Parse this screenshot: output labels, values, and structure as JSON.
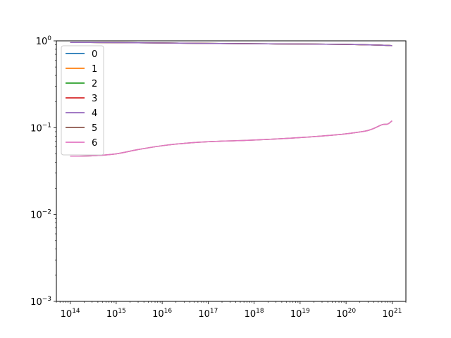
{
  "chart_data": {
    "type": "line",
    "xscale": "log",
    "yscale": "log",
    "xlim": [
      50000000000000.0,
      2e+21
    ],
    "ylim": [
      0.001,
      1
    ],
    "grid": false,
    "legend_position": "top-left",
    "x_ticks": [
      {
        "value": 100000000000000.0,
        "base": "10",
        "exp": "14"
      },
      {
        "value": 1000000000000000.0,
        "base": "10",
        "exp": "15"
      },
      {
        "value": 1e+16,
        "base": "10",
        "exp": "16"
      },
      {
        "value": 1e+17,
        "base": "10",
        "exp": "17"
      },
      {
        "value": 1e+18,
        "base": "10",
        "exp": "18"
      },
      {
        "value": 1e+19,
        "base": "10",
        "exp": "19"
      },
      {
        "value": 1e+20,
        "base": "10",
        "exp": "20"
      },
      {
        "value": 1e+21,
        "base": "10",
        "exp": "21"
      }
    ],
    "y_ticks": [
      {
        "value": 0.001,
        "base": "10",
        "exp": "−3"
      },
      {
        "value": 0.01,
        "base": "10",
        "exp": "−2"
      },
      {
        "value": 0.1,
        "base": "10",
        "exp": "−1"
      },
      {
        "value": 1,
        "base": "10",
        "exp": "0"
      }
    ],
    "series": [
      {
        "name": "0",
        "color": "#1f77b4",
        "points": [
          [
            100000000000000.0,
            0.96
          ],
          [
            1000000000000000.0,
            0.955
          ],
          [
            1e+16,
            0.945
          ],
          [
            1e+17,
            0.935
          ],
          [
            1e+18,
            0.925
          ],
          [
            1e+19,
            0.92
          ],
          [
            1e+20,
            0.91
          ],
          [
            5e+20,
            0.895
          ],
          [
            1e+21,
            0.88
          ]
        ]
      },
      {
        "name": "1",
        "color": "#ff7f0e",
        "points": [
          [
            100000000000000.0,
            0.96
          ],
          [
            1000000000000000.0,
            0.955
          ],
          [
            1e+16,
            0.945
          ],
          [
            1e+17,
            0.935
          ],
          [
            1e+18,
            0.925
          ],
          [
            1e+19,
            0.92
          ],
          [
            1e+20,
            0.91
          ],
          [
            5e+20,
            0.895
          ],
          [
            1e+21,
            0.88
          ]
        ]
      },
      {
        "name": "2",
        "color": "#2ca02c",
        "points": [
          [
            100000000000000.0,
            0.96
          ],
          [
            1000000000000000.0,
            0.955
          ],
          [
            1e+16,
            0.945
          ],
          [
            1e+17,
            0.935
          ],
          [
            1e+18,
            0.925
          ],
          [
            1e+19,
            0.92
          ],
          [
            1e+20,
            0.91
          ],
          [
            5e+20,
            0.895
          ],
          [
            1e+21,
            0.88
          ]
        ]
      },
      {
        "name": "3",
        "color": "#d62728",
        "points": [
          [
            100000000000000.0,
            0.96
          ],
          [
            1000000000000000.0,
            0.955
          ],
          [
            1e+16,
            0.945
          ],
          [
            1e+17,
            0.935
          ],
          [
            1e+18,
            0.925
          ],
          [
            1e+19,
            0.92
          ],
          [
            1e+20,
            0.91
          ],
          [
            5e+20,
            0.895
          ],
          [
            1e+21,
            0.88
          ]
        ]
      },
      {
        "name": "4",
        "color": "#9467bd",
        "points": [
          [
            100000000000000.0,
            0.96
          ],
          [
            1000000000000000.0,
            0.955
          ],
          [
            1e+16,
            0.945
          ],
          [
            1e+17,
            0.935
          ],
          [
            1e+18,
            0.925
          ],
          [
            1e+19,
            0.92
          ],
          [
            1e+20,
            0.91
          ],
          [
            5e+20,
            0.895
          ],
          [
            1e+21,
            0.88
          ]
        ]
      },
      {
        "name": "5",
        "color": "#8c564b",
        "points": [
          [
            100000000000000.0,
            0.047
          ],
          [
            300000000000000.0,
            0.0475
          ],
          [
            1000000000000000.0,
            0.05
          ],
          [
            3000000000000000.0,
            0.056
          ],
          [
            1e+16,
            0.062
          ],
          [
            3e+16,
            0.066
          ],
          [
            1e+17,
            0.069
          ],
          [
            1e+18,
            0.072
          ],
          [
            1e+19,
            0.077
          ],
          [
            5e+19,
            0.082
          ],
          [
            1e+20,
            0.085
          ],
          [
            3e+20,
            0.093
          ],
          [
            6e+20,
            0.108
          ],
          [
            8e+20,
            0.11
          ],
          [
            1e+21,
            0.12
          ]
        ]
      },
      {
        "name": "6",
        "color": "#e377c2",
        "points": [
          [
            100000000000000.0,
            0.047
          ],
          [
            300000000000000.0,
            0.0475
          ],
          [
            1000000000000000.0,
            0.05
          ],
          [
            3000000000000000.0,
            0.056
          ],
          [
            1e+16,
            0.062
          ],
          [
            3e+16,
            0.066
          ],
          [
            1e+17,
            0.069
          ],
          [
            1e+18,
            0.072
          ],
          [
            1e+19,
            0.077
          ],
          [
            5e+19,
            0.082
          ],
          [
            1e+20,
            0.085
          ],
          [
            3e+20,
            0.093
          ],
          [
            6e+20,
            0.108
          ],
          [
            8e+20,
            0.11
          ],
          [
            1e+21,
            0.12
          ]
        ]
      }
    ]
  }
}
